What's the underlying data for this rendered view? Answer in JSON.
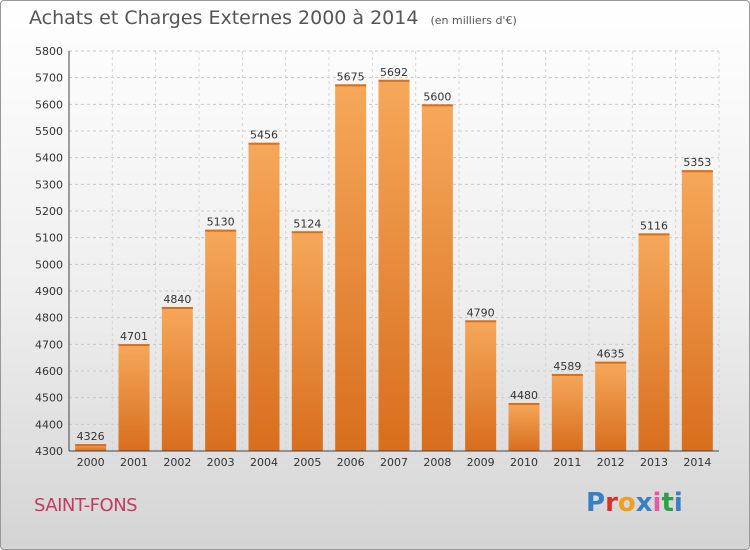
{
  "title": "Achats et Charges Externes 2000 à 2014",
  "subtitle": "(en milliers d'€)",
  "city": "SAINT-FONS",
  "brand": {
    "text": "Proxiti",
    "colors": [
      "#3a7fc4",
      "#d8322f",
      "#f0a020",
      "#3a7fc4",
      "#e85aa0",
      "#2aa24a",
      "#3a7fc4"
    ]
  },
  "colors": {
    "bar": "#f0883a",
    "bar_light": "#f6a85a",
    "bar_dark": "#d86e1e",
    "city": "#c53a62"
  },
  "chart_data": {
    "type": "bar",
    "categories": [
      "2000",
      "2001",
      "2002",
      "2003",
      "2004",
      "2005",
      "2006",
      "2007",
      "2008",
      "2009",
      "2010",
      "2011",
      "2012",
      "2013",
      "2014"
    ],
    "values": [
      4326,
      4701,
      4840,
      5130,
      5456,
      5124,
      5675,
      5692,
      5600,
      4790,
      4480,
      4589,
      4635,
      5116,
      5353
    ],
    "ylim": [
      4300,
      5800
    ],
    "yticks": [
      4300,
      4400,
      4500,
      4600,
      4700,
      4800,
      4900,
      5000,
      5100,
      5200,
      5300,
      5400,
      5500,
      5600,
      5700,
      5800
    ],
    "grid": true,
    "xlabel": "",
    "ylabel": ""
  }
}
